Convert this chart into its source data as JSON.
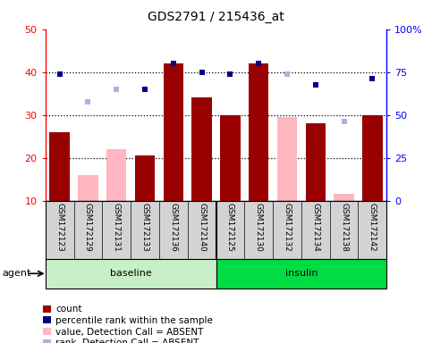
{
  "title": "GDS2791 / 215436_at",
  "samples": [
    "GSM172123",
    "GSM172129",
    "GSM172131",
    "GSM172133",
    "GSM172136",
    "GSM172140",
    "GSM172125",
    "GSM172130",
    "GSM172132",
    "GSM172134",
    "GSM172138",
    "GSM172142"
  ],
  "red_bars": [
    26,
    null,
    null,
    20.5,
    42,
    34,
    30,
    42,
    null,
    28,
    null,
    30
  ],
  "pink_bars": [
    null,
    16,
    22,
    null,
    null,
    null,
    null,
    null,
    29.5,
    null,
    11.5,
    null
  ],
  "blue_squares": [
    39.5,
    null,
    null,
    36,
    42,
    40,
    39.5,
    42,
    null,
    37,
    null,
    38.5
  ],
  "lavender_squares": [
    null,
    33,
    36,
    null,
    null,
    null,
    null,
    null,
    39.5,
    null,
    28.5,
    null
  ],
  "ylim_left": [
    10,
    50
  ],
  "ylim_right": [
    0,
    100
  ],
  "yticks_left": [
    10,
    20,
    30,
    40,
    50
  ],
  "ytick_labels_left": [
    "10",
    "20",
    "30",
    "40",
    "50"
  ],
  "yticks_right": [
    0,
    25,
    50,
    75,
    100
  ],
  "ytick_labels_right": [
    "0",
    "25",
    "50",
    "75",
    "100%"
  ],
  "hlines": [
    20,
    30,
    40
  ],
  "red_color": "#990000",
  "pink_color": "#FFB6C1",
  "blue_color": "#00008B",
  "lavender_color": "#B0B0E0",
  "bar_width": 0.7,
  "baseline_color": "#C8F0C8",
  "insulin_color": "#00DD44",
  "baseline_name": "baseline",
  "insulin_name": "insulin",
  "label_count": "count",
  "label_percentile": "percentile rank within the sample",
  "label_value_absent": "value, Detection Call = ABSENT",
  "label_rank_absent": "rank, Detection Call = ABSENT",
  "agent_label": "agent",
  "figsize": [
    4.83,
    3.84
  ],
  "dpi": 100
}
